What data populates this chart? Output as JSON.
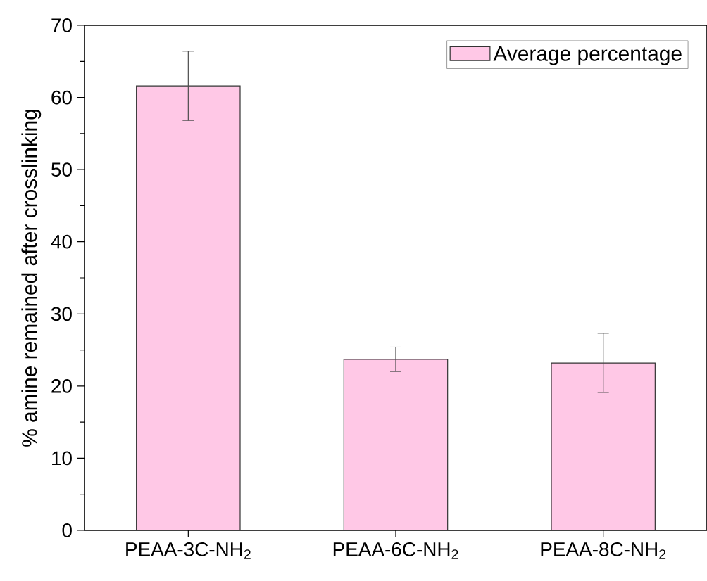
{
  "chart_data": {
    "type": "bar",
    "ylabel": "% amine remained after crosslinking",
    "categories": [
      "PEAA-3C-NH$_{2}$",
      "PEAA-6C-NH$_{2}$",
      "PEAA-8C-NH$_{2}$"
    ],
    "series": [
      {
        "name": "Average percentage",
        "color": "#ffc8e6",
        "values": [
          61.6,
          23.7,
          23.2
        ],
        "errors": [
          4.8,
          1.7,
          4.1
        ]
      }
    ],
    "ylim": [
      0,
      70
    ],
    "yticks": [
      0,
      10,
      20,
      30,
      40,
      50,
      60,
      70
    ],
    "grid": false,
    "legend": "top right"
  }
}
